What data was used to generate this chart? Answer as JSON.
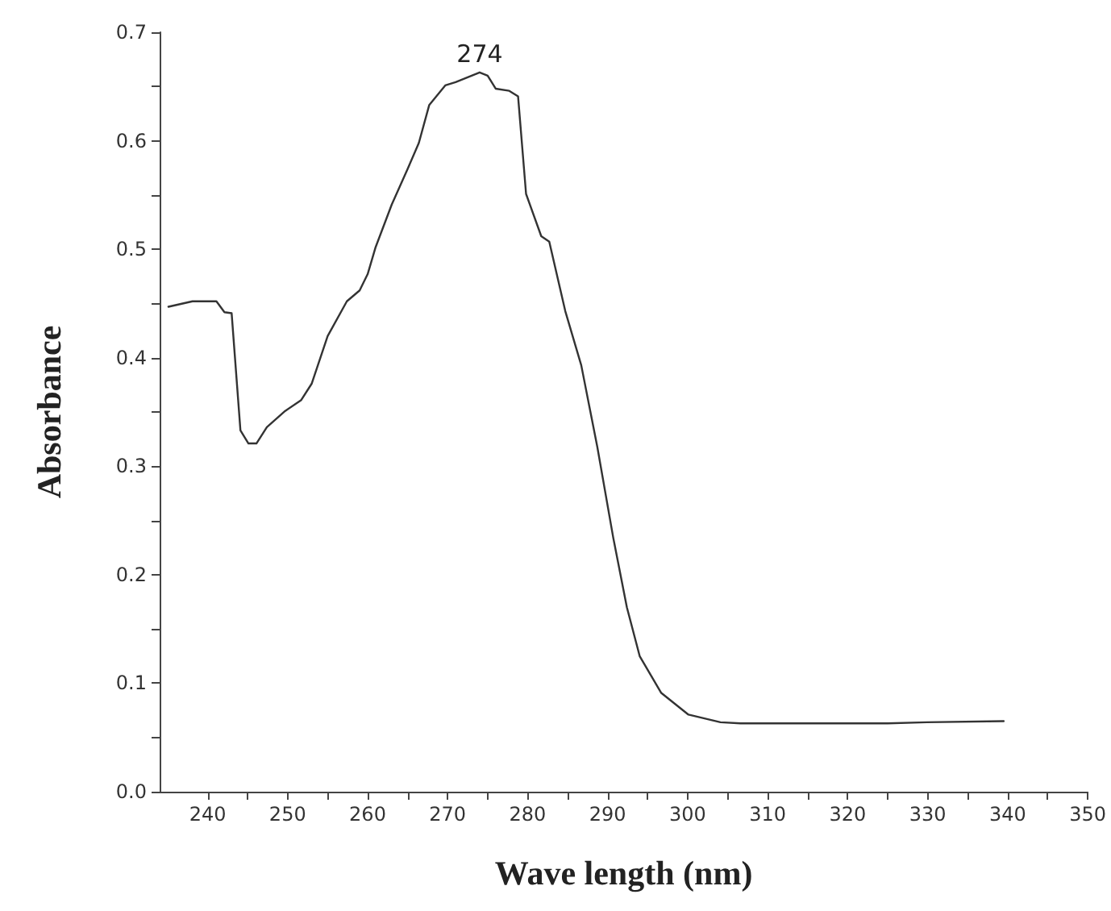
{
  "chart_data": {
    "type": "line",
    "xlabel": "Wave length (nm)",
    "ylabel": "Absorbance",
    "x": [
      235.1,
      238.1,
      241.1,
      242.1,
      243.0,
      244.1,
      245.1,
      246.1,
      247.4,
      249.7,
      251.7,
      253.0,
      255.0,
      257.4,
      259.0,
      260.0,
      261.0,
      263.0,
      265.0,
      266.4,
      267.7,
      269.7,
      271.0,
      273.0,
      274.0,
      275.0,
      276.0,
      277.7,
      278.8,
      279.8,
      281.7,
      282.7,
      284.7,
      286.7,
      288.7,
      290.7,
      292.4,
      294.0,
      296.7,
      300.1,
      304.1,
      306.6,
      315.0,
      325.0,
      329.9,
      339.5
    ],
    "series": [
      {
        "color": "#333333",
        "values": [
          0.447,
          0.452,
          0.452,
          0.442,
          0.441,
          0.333,
          0.321,
          0.321,
          0.336,
          0.351,
          0.361,
          0.376,
          0.42,
          0.452,
          0.462,
          0.477,
          0.502,
          0.541,
          0.574,
          0.598,
          0.633,
          0.651,
          0.654,
          0.66,
          0.663,
          0.66,
          0.648,
          0.646,
          0.641,
          0.551,
          0.512,
          0.507,
          0.443,
          0.393,
          0.318,
          0.234,
          0.17,
          0.125,
          0.091,
          0.071,
          0.064,
          0.063,
          0.063,
          0.063,
          0.064,
          0.065
        ]
      }
    ],
    "xlim": [
      234,
      350
    ],
    "xticks": [
      240,
      {
        "value": 245,
        "label": null
      },
      250,
      {
        "value": 255,
        "label": null
      },
      260,
      {
        "value": 265,
        "label": null
      },
      270,
      {
        "value": 275,
        "label": null
      },
      280,
      {
        "value": 285,
        "label": null
      },
      290,
      {
        "value": 295,
        "label": null
      },
      300,
      {
        "value": 305,
        "label": null
      },
      310,
      {
        "value": 315,
        "label": null
      },
      320,
      {
        "value": 325,
        "label": null
      },
      330,
      {
        "value": 335,
        "label": null
      },
      340,
      {
        "value": 345,
        "label": null
      },
      350
    ],
    "ylim": [
      0,
      0.7
    ],
    "yticks": [
      {
        "value": 0,
        "label": "0.0"
      },
      {
        "value": 0.05,
        "label": null
      },
      0.1,
      {
        "value": 0.15,
        "label": null
      },
      0.2,
      {
        "value": 0.25,
        "label": null
      },
      0.3,
      {
        "value": 0.35,
        "label": null
      },
      0.4,
      {
        "value": 0.45,
        "label": null
      },
      0.5,
      {
        "value": 0.55,
        "label": null
      },
      0.6,
      {
        "value": 0.65,
        "label": null
      },
      0.7
    ],
    "annotations": [
      {
        "text": "274",
        "x": 274,
        "y": 0.663
      }
    ],
    "grid": false,
    "marker": "none",
    "line_style": "solid"
  }
}
